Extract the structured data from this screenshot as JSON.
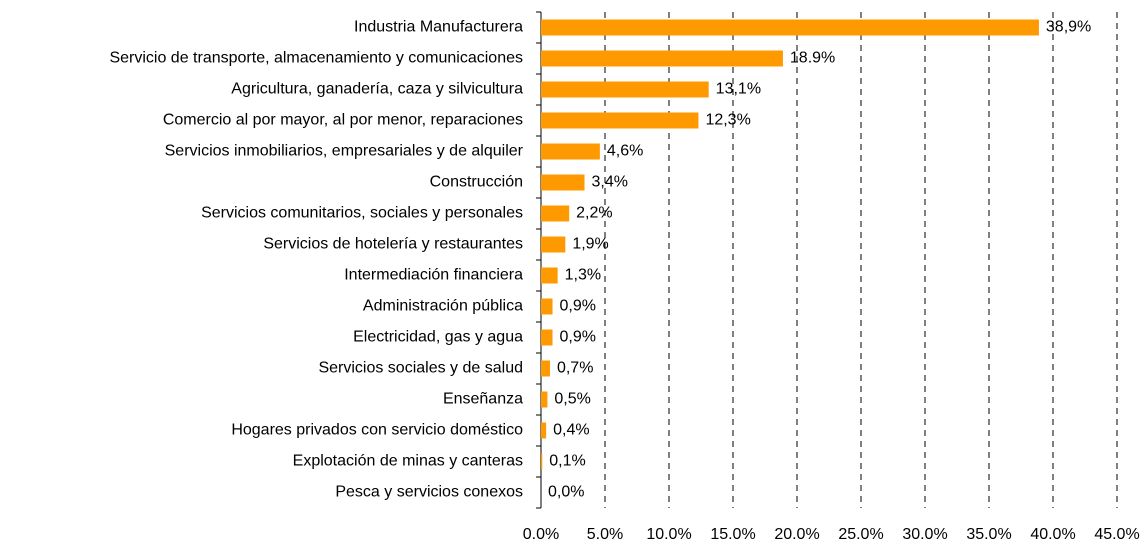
{
  "chart_data": {
    "type": "bar",
    "orientation": "horizontal",
    "categories": [
      "Industria Manufacturera",
      "Servicio de transporte, almacenamiento y comunicaciones",
      "Agricultura, ganadería, caza y silvicultura",
      "Comercio al por mayor, al por menor, reparaciones",
      "Servicios inmobiliarios, empresariales y de alquiler",
      "Construcción",
      "Servicios comunitarios, sociales y personales",
      "Servicios de hotelería y restaurantes",
      "Intermediación financiera",
      "Administración pública",
      "Electricidad, gas y agua",
      "Servicios sociales y de salud",
      "Enseñanza",
      "Hogares privados con servicio doméstico",
      "Explotación de minas y canteras",
      "Pesca y servicios conexos"
    ],
    "values": [
      38.9,
      18.9,
      13.1,
      12.3,
      4.6,
      3.4,
      2.2,
      1.9,
      1.3,
      0.9,
      0.9,
      0.7,
      0.5,
      0.4,
      0.1,
      0.0
    ],
    "value_labels": [
      "38,9%",
      "18.9%",
      "13,1%",
      "12,3%",
      "4,6%",
      "3,4%",
      "2,2%",
      "1,9%",
      "1,3%",
      "0,9%",
      "0,9%",
      "0,7%",
      "0,5%",
      "0,4%",
      "0,1%",
      "0,0%"
    ],
    "color": "#ff9900",
    "xlim": [
      0,
      45
    ],
    "xticks": [
      {
        "value": 0,
        "label": "0.0%"
      },
      {
        "value": 5,
        "label": "5.0%"
      },
      {
        "value": 10,
        "label": "10.0%"
      },
      {
        "value": 15,
        "label": "15.0%"
      },
      {
        "value": 20,
        "label": "20.0%"
      },
      {
        "value": 25,
        "label": "25.0%"
      },
      {
        "value": 30,
        "label": "30.0%"
      },
      {
        "value": 35,
        "label": "35.0%"
      },
      {
        "value": 40,
        "label": "40.0%"
      },
      {
        "value": 45,
        "label": "45.0%"
      }
    ],
    "grid": true
  }
}
